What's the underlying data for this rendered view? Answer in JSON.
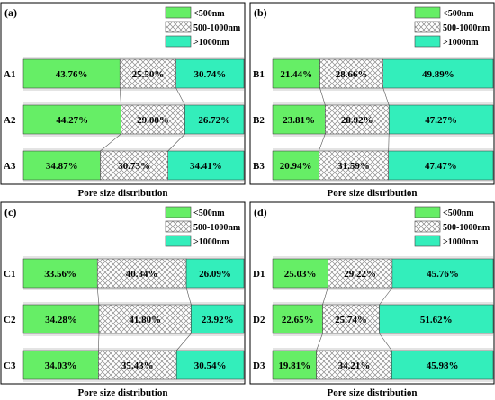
{
  "colors": {
    "lt500": "#66ee66",
    "mid": "hatched-grey",
    "gt1000": "#33eebb"
  },
  "legend": {
    "lt500": "<500nm",
    "mid": "500-1000nm",
    "gt1000": ">1000nm"
  },
  "chart_data": [
    {
      "type": "bar",
      "stacked": "horizontal-100-percent",
      "panel_label": "(a)",
      "xlabel": "Pore size distribution",
      "categories": [
        "A1",
        "A2",
        "A3"
      ],
      "series": [
        {
          "name": "<500nm",
          "values": [
            43.76,
            44.27,
            34.87
          ],
          "labels": [
            "43.76%",
            "44.27%",
            "34.87%"
          ]
        },
        {
          "name": "500-1000nm",
          "values": [
            25.5,
            29.0,
            30.73
          ],
          "labels": [
            "25.50%",
            "29.00%",
            "30.73%"
          ]
        },
        {
          "name": ">1000nm",
          "values": [
            30.74,
            26.72,
            34.41
          ],
          "labels": [
            "30.74%",
            "26.72%",
            "34.41%"
          ]
        }
      ]
    },
    {
      "type": "bar",
      "stacked": "horizontal-100-percent",
      "panel_label": "(b)",
      "xlabel": "Pore size distribution",
      "categories": [
        "B1",
        "B2",
        "B3"
      ],
      "series": [
        {
          "name": "<500nm",
          "values": [
            21.44,
            23.81,
            20.94
          ],
          "labels": [
            "21.44%",
            "23.81%",
            "20.94%"
          ]
        },
        {
          "name": "500-1000nm",
          "values": [
            28.66,
            28.92,
            31.59
          ],
          "labels": [
            "28.66%",
            "28.92%",
            "31.59%"
          ]
        },
        {
          "name": ">1000nm",
          "values": [
            49.89,
            47.27,
            47.47
          ],
          "labels": [
            "49.89%",
            "47.27%",
            "47.47%"
          ]
        }
      ]
    },
    {
      "type": "bar",
      "stacked": "horizontal-100-percent",
      "panel_label": "(c)",
      "xlabel": "Pore size distribution",
      "categories": [
        "C1",
        "C2",
        "C3"
      ],
      "series": [
        {
          "name": "<500nm",
          "values": [
            33.56,
            34.28,
            34.03
          ],
          "labels": [
            "33.56%",
            "34.28%",
            "34.03%"
          ]
        },
        {
          "name": "500-1000nm",
          "values": [
            40.34,
            41.8,
            35.43
          ],
          "labels": [
            "40.34%",
            "41.80%",
            "35.43%"
          ]
        },
        {
          "name": ">1000nm",
          "values": [
            26.09,
            23.92,
            30.54
          ],
          "labels": [
            "26.09%",
            "23.92%",
            "30.54%"
          ]
        }
      ]
    },
    {
      "type": "bar",
      "stacked": "horizontal-100-percent",
      "panel_label": "(d)",
      "xlabel": "Pore size distribution",
      "categories": [
        "D1",
        "D2",
        "D3"
      ],
      "series": [
        {
          "name": "<500nm",
          "values": [
            25.03,
            22.65,
            19.81
          ],
          "labels": [
            "25.03%",
            "22.65%",
            "19.81%"
          ]
        },
        {
          "name": "500-1000nm",
          "values": [
            29.22,
            25.74,
            34.21
          ],
          "labels": [
            "29.22%",
            "25.74%",
            "34.21%"
          ]
        },
        {
          "name": ">1000nm",
          "values": [
            45.76,
            51.62,
            45.98
          ],
          "labels": [
            "45.76%",
            "51.62%",
            "45.98%"
          ]
        }
      ]
    }
  ]
}
